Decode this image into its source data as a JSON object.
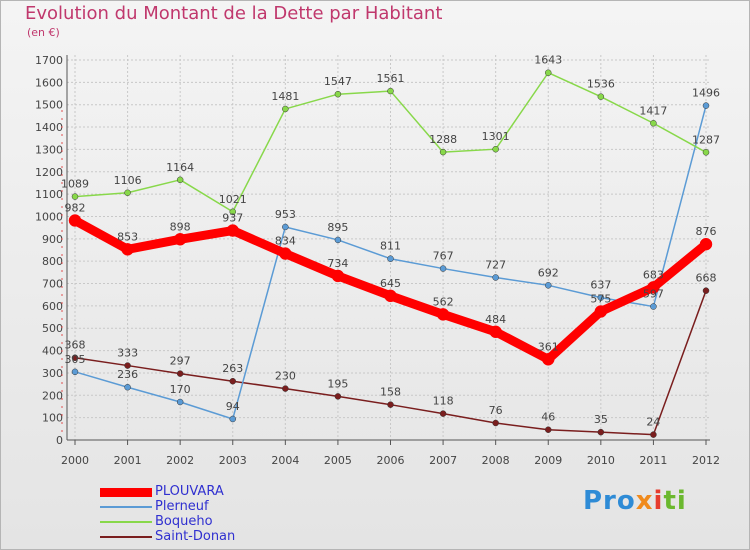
{
  "title": "Evolution du Montant de la Dette par Habitant",
  "unit": "(en €)",
  "logo": {
    "part1": "Pro",
    "part2": "x",
    "part3": "i",
    "part4": "ti"
  },
  "chart_data": {
    "type": "line",
    "title": "Evolution du Montant de la Dette par Habitant",
    "ylabel": "(en €)",
    "xlabel": "",
    "x": [
      "2000",
      "2001",
      "2002",
      "2003",
      "2004",
      "2005",
      "2006",
      "2007",
      "2008",
      "2009",
      "2010",
      "2011",
      "2012"
    ],
    "y_ticks": [
      0,
      100,
      200,
      300,
      400,
      500,
      600,
      700,
      800,
      900,
      1000,
      1100,
      1200,
      1300,
      1400,
      1500,
      1600,
      1700
    ],
    "ylim": [
      0,
      1700
    ],
    "grid": true,
    "legend": "bottom-left",
    "series": [
      {
        "name": "PLOUVARA",
        "color": "#ff0000",
        "values": [
          982,
          853,
          898,
          937,
          834,
          734,
          645,
          562,
          484,
          361,
          575,
          683,
          876
        ],
        "labels": [
          "982",
          "853",
          "898",
          "937",
          "834",
          "734",
          "645",
          "562",
          "484",
          "361",
          "575",
          "683",
          "876"
        ]
      },
      {
        "name": "Plerneuf",
        "color": "#5b9bd5",
        "values": [
          305,
          236,
          170,
          94,
          953,
          895,
          811,
          767,
          727,
          692,
          637,
          597,
          1496
        ],
        "labels": [
          "305",
          "236",
          "170",
          "94",
          "953",
          "895",
          "811",
          "767",
          "727",
          "692",
          "637",
          "597",
          "1496"
        ]
      },
      {
        "name": "Boqueho",
        "color": "#88d84a",
        "values": [
          1089,
          1106,
          1164,
          1021,
          1481,
          1547,
          1561,
          1288,
          1301,
          1643,
          1536,
          1417,
          1287
        ],
        "labels": [
          "1089",
          "1106",
          "1164",
          "1021",
          "1481",
          "1547",
          "1561",
          "1288",
          "1301",
          "1643",
          "1536",
          "1417",
          "1287"
        ]
      },
      {
        "name": "Saint-Donan",
        "color": "#7a1e1e",
        "values": [
          368,
          333,
          297,
          263,
          230,
          195,
          158,
          118,
          76,
          46,
          35,
          24,
          668
        ],
        "labels": [
          "368",
          "333",
          "297",
          "263",
          "230",
          "195",
          "158",
          "118",
          "76",
          "46",
          "35",
          "24",
          "668"
        ]
      }
    ]
  }
}
